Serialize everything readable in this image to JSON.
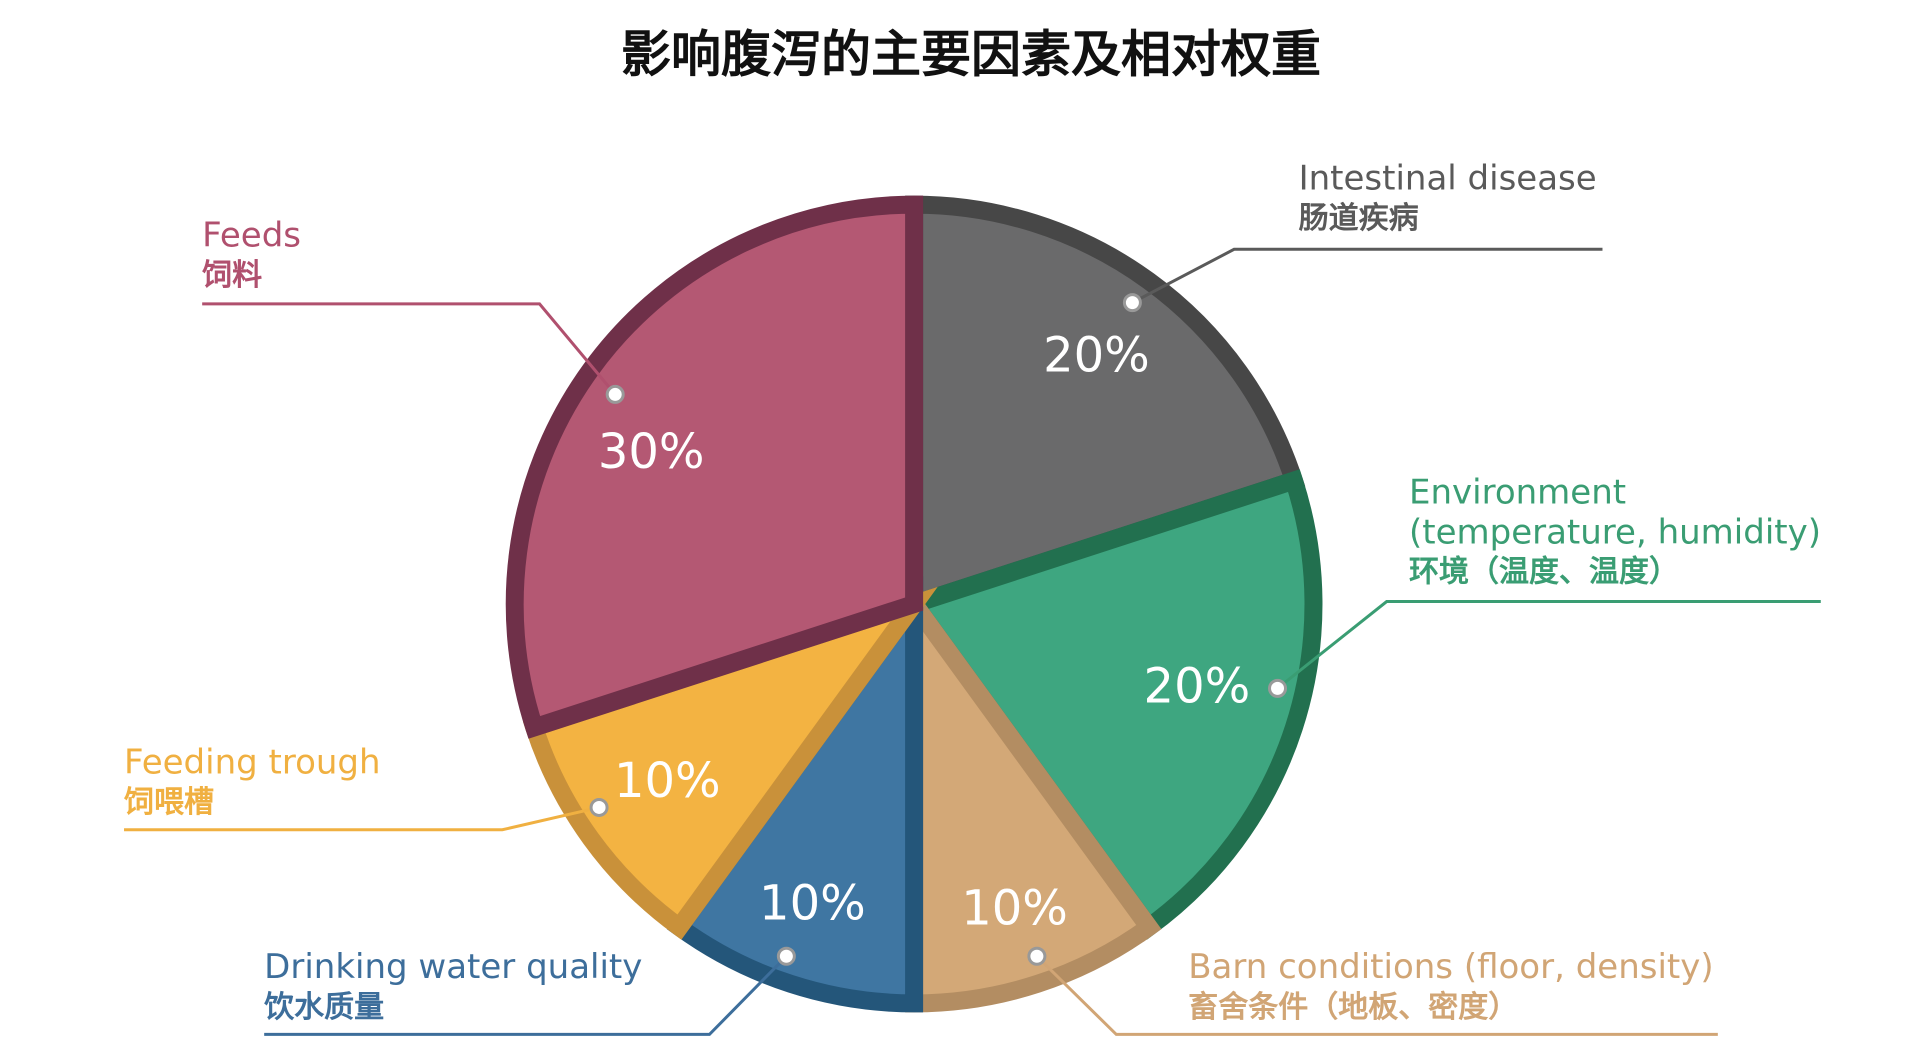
{
  "chart_data": {
    "type": "pie",
    "title": "影响腹泻的主要因素及相对权重",
    "slices": [
      {
        "name": "Intestinal disease",
        "name_cn": "肠道疾病",
        "value": 20,
        "value_label": "20%",
        "color": "#6a6a6b",
        "border": "#474747",
        "label_color": "#5a5a5a"
      },
      {
        "name": "Environment (temperature, humidity)",
        "name_cn": "环境（温度、温度）",
        "value": 20,
        "value_label": "20%",
        "color": "#3ea680",
        "border": "#22704f",
        "label_color": "#3a9d73"
      },
      {
        "name": "Barn conditions (floor, density)",
        "name_cn": "畜舍条件（地板、密度）",
        "value": 10,
        "value_label": "10%",
        "color": "#d3a877",
        "border": "#b38d62",
        "label_color": "#d1a575"
      },
      {
        "name": "Drinking water quality",
        "name_cn": "饮水质量",
        "value": 10,
        "value_label": "10%",
        "color": "#3f76a2",
        "border": "#24567a",
        "label_color": "#3d6e9b"
      },
      {
        "name": "Feeding trough",
        "name_cn": "饲喂槽",
        "value": 10,
        "value_label": "10%",
        "color": "#f3b342",
        "border": "#c9913a",
        "label_color": "#f0b041"
      },
      {
        "name": "Feeds",
        "name_cn": "饲料",
        "value": 30,
        "value_label": "30%",
        "color": "#b45873",
        "border": "#6f3049",
        "label_color": "#b0506e"
      }
    ]
  }
}
